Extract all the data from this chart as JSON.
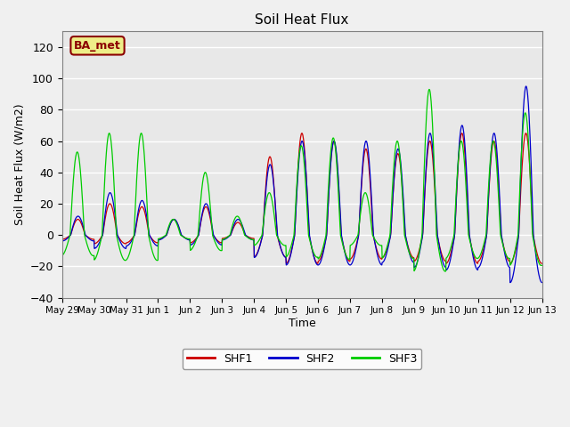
{
  "title": "Soil Heat Flux",
  "ylabel": "Soil Heat Flux (W/m2)",
  "xlabel": "Time",
  "ylim": [
    -40,
    130
  ],
  "yticks": [
    -40,
    -20,
    0,
    20,
    40,
    60,
    80,
    100,
    120
  ],
  "background_color": "#f0f0f0",
  "plot_bg_color": "#e8e8e8",
  "shf1_color": "#cc0000",
  "shf2_color": "#0000cc",
  "shf3_color": "#00cc00",
  "annotation_text": "BA_met",
  "annotation_bg": "#eeee88",
  "annotation_border": "#8b0000",
  "x_tick_labels": [
    "May 29",
    "May 30",
    "May 31",
    "Jun 1",
    "Jun 2",
    "Jun 3",
    "Jun 4",
    "Jun 5",
    "Jun 6",
    "Jun 7",
    "Jun 8",
    "Jun 9",
    "Jun 10",
    "Jun 11",
    "Jun 12",
    "Jun 13"
  ],
  "n_points": 1441,
  "days_span": 15
}
